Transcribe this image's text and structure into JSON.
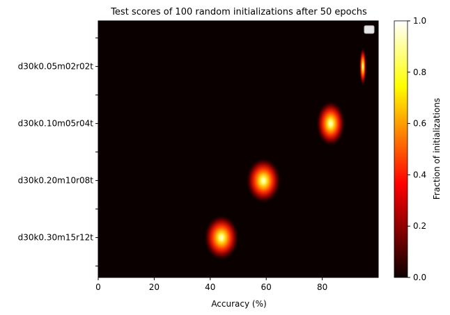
{
  "chart_data": {
    "type": "heatmap",
    "title": "Test scores of 100 random initializations after 50 epochs",
    "xlabel": "Accuracy (%)",
    "ylabel": "",
    "xlim": [
      0,
      100
    ],
    "xticks": [
      0,
      20,
      40,
      60,
      80
    ],
    "categories": [
      "d30k0.05m02r02t",
      "d30k0.10m05r04t",
      "d30k0.20m10r08t",
      "d30k0.30m15r12t"
    ],
    "series": [
      {
        "category": "d30k0.05m02r02t",
        "peak_accuracy": 94.5,
        "spread": 0.6
      },
      {
        "category": "d30k0.10m05r04t",
        "peak_accuracy": 83,
        "spread": 2.5
      },
      {
        "category": "d30k0.20m10r08t",
        "peak_accuracy": 59,
        "spread": 3
      },
      {
        "category": "d30k0.30m15r12t",
        "peak_accuracy": 44,
        "spread": 3
      }
    ],
    "colorbar": {
      "label": "Fraction of initializations",
      "range": [
        0,
        1
      ],
      "ticks": [
        "0.0",
        "0.2",
        "0.4",
        "0.6",
        "0.8",
        "1.0"
      ],
      "colormap": "hot"
    },
    "legend": {
      "position": "top-right",
      "entries": []
    },
    "background_color": "#0b0000"
  }
}
